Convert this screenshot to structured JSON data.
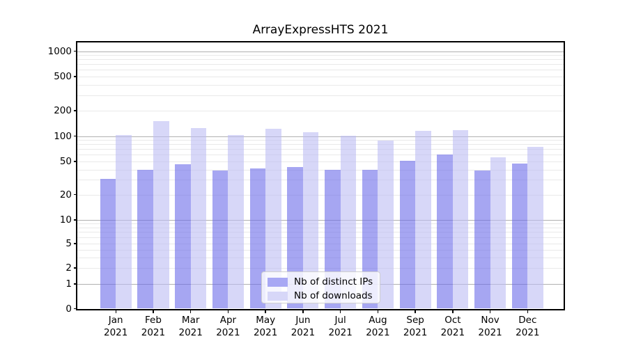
{
  "chart_data": {
    "type": "bar",
    "title": "ArrayExpressHTS 2021",
    "categories": [
      "Jan",
      "Feb",
      "Mar",
      "Apr",
      "May",
      "Jun",
      "Jul",
      "Aug",
      "Sep",
      "Oct",
      "Nov",
      "Dec"
    ],
    "category_year": "2021",
    "series": [
      {
        "name": "Nb of distinct IPs",
        "color": "rgba(106,106,233,0.6)",
        "values": [
          31,
          40,
          46,
          39,
          41,
          43,
          40,
          40,
          51,
          60,
          39,
          47
        ]
      },
      {
        "name": "Nb of downloads",
        "color": "rgba(188,188,243,0.6)",
        "values": [
          102,
          150,
          124,
          103,
          123,
          111,
          101,
          89,
          115,
          118,
          56,
          75
        ]
      }
    ],
    "y_axis": {
      "scale": "symlog",
      "ticks": [
        0,
        1,
        2,
        5,
        10,
        20,
        50,
        100,
        200,
        500,
        1000
      ],
      "ylim": [
        0,
        1300
      ]
    },
    "grid": {
      "major_lines": [
        1,
        10,
        100,
        1000
      ],
      "minor_subs": [
        2,
        3,
        4,
        5,
        6,
        7,
        8,
        9
      ],
      "enabled": true
    },
    "legend": {
      "position": "lower center",
      "entries": [
        "Nb of distinct IPs",
        "Nb of downloads"
      ]
    }
  },
  "colors": {
    "major_grid": "#b0b0b0",
    "minor_grid": "#e9e9e9",
    "spine": "#000000",
    "dark_bar_composite": "#a8a8f4",
    "light_bar_composite": "#d7d7f8"
  }
}
